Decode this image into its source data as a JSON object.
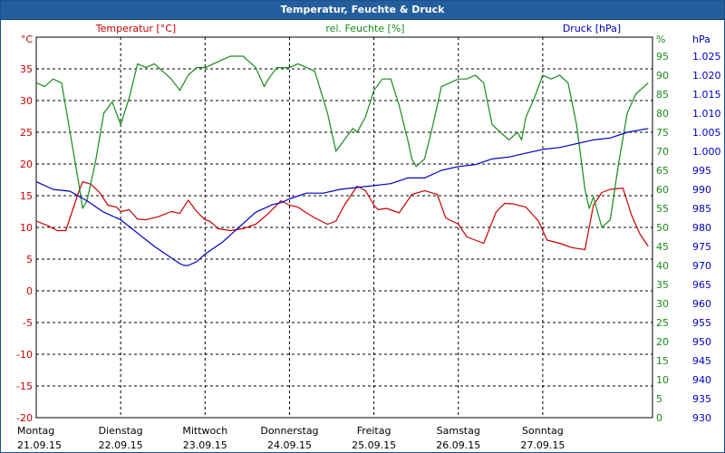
{
  "window": {
    "title": "Temperatur, Feuchte & Druck"
  },
  "colors": {
    "title_bg": "#245f9d",
    "temperature": "#c80000",
    "humidity": "#1a8a1a",
    "pressure": "#0000c0",
    "grid": "#000000"
  },
  "chart_data": {
    "type": "line",
    "grid": true,
    "axes": {
      "left": {
        "label": "Temperatur [°C]",
        "unit": "°C",
        "min": -20,
        "max": 40,
        "step": 5
      },
      "right1": {
        "label": "rel. Feuchte [%]",
        "unit": "%",
        "min": 0,
        "max": 100,
        "step": 5
      },
      "right2": {
        "label": "Druck [hPa]",
        "unit": "hPa",
        "min": 930,
        "max": 1030,
        "step": 5
      }
    },
    "y_tick_labels": {
      "temperature": [
        "°C",
        "35",
        "30",
        "25",
        "20",
        "15",
        "10",
        "5",
        "0",
        "-5",
        "-10",
        "-15",
        "-20"
      ],
      "humidity": [
        "%",
        "95",
        "90",
        "85",
        "80",
        "75",
        "70",
        "65",
        "60",
        "55",
        "50",
        "45",
        "40",
        "35",
        "30",
        "25",
        "20",
        "15",
        "10",
        "5",
        "0"
      ],
      "pressure": [
        "hPa",
        "1.025",
        "1.020",
        "1.015",
        "1.010",
        "1.005",
        "1.000",
        "995",
        "990",
        "985",
        "980",
        "975",
        "970",
        "965",
        "960",
        "955",
        "950",
        "945",
        "940",
        "935",
        "930"
      ]
    },
    "x_days": [
      {
        "day": "Montag",
        "date": "21.09.15"
      },
      {
        "day": "Dienstag",
        "date": "22.09.15"
      },
      {
        "day": "Mittwoch",
        "date": "23.09.15"
      },
      {
        "day": "Donnerstag",
        "date": "24.09.15"
      },
      {
        "day": "Freitag",
        "date": "25.09.15"
      },
      {
        "day": "Samstag",
        "date": "26.09.15"
      },
      {
        "day": "Sonntag",
        "date": "27.09.15"
      }
    ],
    "x_range_days": [
      0,
      7.3
    ],
    "series": [
      {
        "name": "Temperatur [°C]",
        "axis": "left",
        "x": [
          0,
          0.15,
          0.25,
          0.35,
          0.5,
          0.55,
          0.65,
          0.75,
          0.85,
          0.95,
          1.0,
          1.1,
          1.2,
          1.3,
          1.45,
          1.6,
          1.7,
          1.8,
          1.9,
          2.0,
          2.05,
          2.1,
          2.15,
          2.3,
          2.45,
          2.6,
          2.75,
          2.9,
          3.0,
          3.1,
          3.2,
          3.3,
          3.45,
          3.55,
          3.65,
          3.8,
          3.9,
          4.0,
          4.05,
          4.15,
          4.3,
          4.45,
          4.6,
          4.75,
          4.85,
          5.0,
          5.1,
          5.3,
          5.45,
          5.55,
          5.65,
          5.8,
          5.95,
          6.05,
          6.2,
          6.35,
          6.5,
          6.6,
          6.7,
          6.8,
          6.95,
          7.05,
          7.15,
          7.25
        ],
        "values": [
          11,
          10.2,
          9.5,
          9.5,
          15.5,
          17.2,
          16.8,
          15.5,
          13.5,
          13.2,
          12.5,
          12.8,
          11.3,
          11.2,
          11.7,
          12.5,
          12.2,
          14.3,
          12.5,
          11.2,
          11.0,
          10.5,
          9.8,
          9.5,
          9.8,
          10.5,
          12.2,
          14.2,
          13.5,
          13.2,
          12.3,
          11.5,
          10.5,
          11.0,
          13.5,
          16.5,
          15.8,
          13.5,
          12.8,
          13.0,
          12.3,
          15.2,
          15.8,
          15.2,
          11.5,
          10.5,
          8.5,
          7.5,
          12.5,
          13.8,
          13.7,
          13.2,
          11.0,
          8.0,
          7.5,
          6.8,
          6.5,
          13.5,
          15.5,
          16.0,
          16.2,
          12.0,
          9.0,
          7.0
        ]
      },
      {
        "name": "rel. Feuchte [%]",
        "axis": "right1",
        "x": [
          0,
          0.1,
          0.2,
          0.3,
          0.4,
          0.5,
          0.55,
          0.6,
          0.7,
          0.8,
          0.9,
          1.0,
          1.1,
          1.2,
          1.3,
          1.4,
          1.5,
          1.6,
          1.7,
          1.8,
          1.9,
          2.0,
          2.1,
          2.2,
          2.3,
          2.45,
          2.6,
          2.7,
          2.75,
          2.85,
          3.0,
          3.1,
          3.2,
          3.3,
          3.45,
          3.55,
          3.65,
          3.75,
          3.8,
          3.9,
          4.0,
          4.1,
          4.2,
          4.3,
          4.4,
          4.45,
          4.5,
          4.6,
          4.7,
          4.8,
          4.9,
          5.0,
          5.1,
          5.2,
          5.3,
          5.4,
          5.5,
          5.6,
          5.7,
          5.75,
          5.8,
          5.9,
          6.0,
          6.1,
          6.2,
          6.3,
          6.4,
          6.5,
          6.55,
          6.6,
          6.7,
          6.8,
          6.9,
          7.0,
          7.1,
          7.25
        ],
        "values": [
          88,
          87,
          89,
          88,
          75,
          62,
          55,
          57,
          67,
          80,
          83,
          77,
          84,
          93,
          92,
          93,
          91,
          89,
          86,
          90,
          92,
          92,
          93,
          94,
          95,
          95,
          92,
          87,
          89,
          92,
          92,
          93,
          92,
          91,
          80,
          70,
          73,
          76,
          75,
          79,
          86,
          89,
          89,
          82,
          73,
          68,
          66,
          68,
          77,
          87,
          88,
          89,
          89,
          90,
          88,
          77,
          75,
          73,
          75,
          73,
          79,
          84,
          90,
          89,
          90,
          88,
          77,
          60,
          55,
          58,
          50,
          52,
          67,
          80,
          85,
          88
        ]
      },
      {
        "name": "Druck [hPa]",
        "axis": "right2",
        "x": [
          0,
          0.2,
          0.4,
          0.6,
          0.8,
          1.0,
          1.2,
          1.4,
          1.6,
          1.7,
          1.75,
          1.8,
          1.9,
          2.0,
          2.2,
          2.4,
          2.6,
          2.8,
          2.9,
          3.0,
          3.2,
          3.4,
          3.6,
          3.8,
          4.0,
          4.2,
          4.4,
          4.6,
          4.8,
          5.0,
          5.2,
          5.4,
          5.6,
          5.8,
          6.0,
          6.2,
          6.4,
          6.6,
          6.8,
          7.0,
          7.25
        ],
        "values": [
          992,
          990,
          989.5,
          987,
          984,
          982,
          978.5,
          975,
          972,
          970.5,
          970,
          970,
          971,
          973,
          976,
          980,
          984,
          986,
          986.5,
          987.5,
          989,
          989,
          990,
          990.5,
          991,
          991.5,
          993,
          993,
          995,
          996,
          996.5,
          998,
          998.5,
          999.5,
          1000.5,
          1001,
          1002,
          1003,
          1003.5,
          1005,
          1006
        ]
      }
    ]
  }
}
